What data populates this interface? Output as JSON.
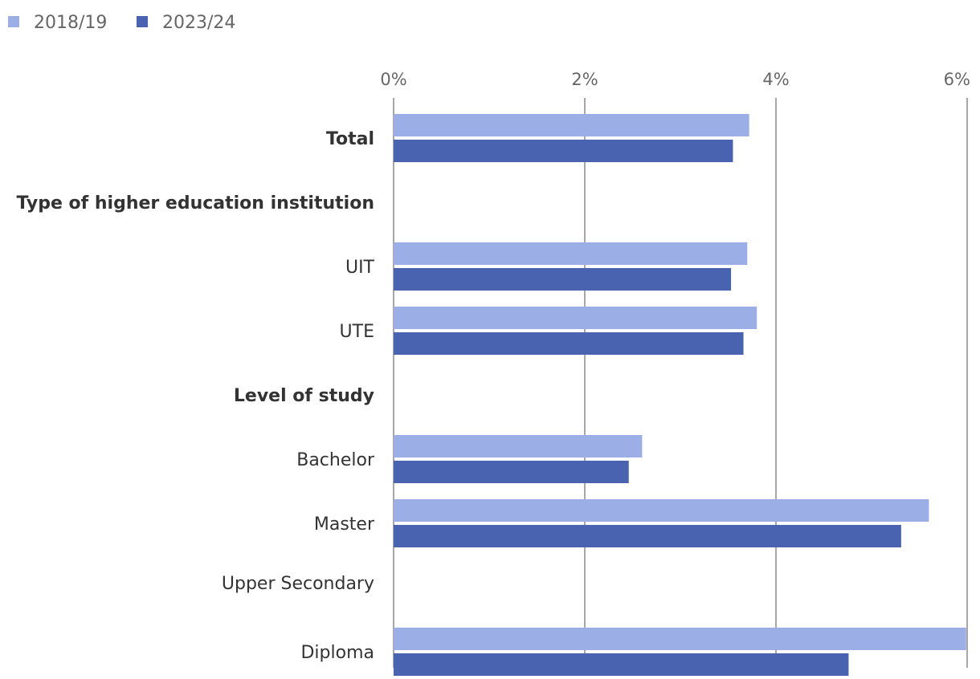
{
  "chart_data": {
    "type": "bar",
    "orientation": "horizontal",
    "legend_position": "top-left",
    "xlim": [
      0,
      6
    ],
    "xticks": [
      0,
      2,
      4,
      6
    ],
    "xtick_labels": [
      "0%",
      "2%",
      "4%",
      "6%"
    ],
    "grid": true,
    "series": [
      {
        "name": "2018/19",
        "color": "#9caee6"
      },
      {
        "name": "2023/24",
        "color": "#4a63b0"
      }
    ],
    "rows": [
      {
        "label": "Total",
        "bold": true,
        "values": [
          3.72,
          3.55
        ]
      },
      {
        "label": "Type of higher education institution",
        "bold": true,
        "values": null
      },
      {
        "label": "UIT",
        "bold": false,
        "values": [
          3.7,
          3.53
        ]
      },
      {
        "label": "UTE",
        "bold": false,
        "values": [
          3.8,
          3.66
        ]
      },
      {
        "label": "Level of study",
        "bold": true,
        "values": null
      },
      {
        "label": "Bachelor",
        "bold": false,
        "values": [
          2.6,
          2.46
        ]
      },
      {
        "label": "Master",
        "bold": false,
        "values": [
          5.6,
          5.31
        ]
      },
      {
        "label": "Upper Secondary",
        "bold": false,
        "values": null
      },
      {
        "label": "Diploma",
        "bold": false,
        "values": [
          5.99,
          4.76
        ]
      }
    ]
  }
}
